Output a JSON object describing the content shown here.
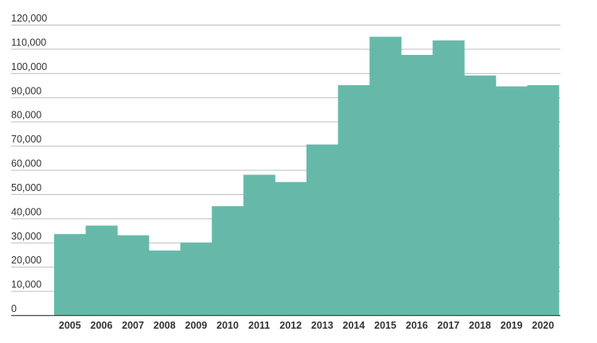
{
  "chart_data": {
    "type": "bar",
    "title": "",
    "xlabel": "",
    "ylabel": "",
    "categories": [
      "2005",
      "2006",
      "2007",
      "2008",
      "2009",
      "2010",
      "2011",
      "2012",
      "2013",
      "2014",
      "2015",
      "2016",
      "2017",
      "2018",
      "2019",
      "2020"
    ],
    "values": [
      33500,
      37000,
      33000,
      26700,
      30000,
      45000,
      58000,
      55000,
      70500,
      95000,
      115000,
      107500,
      113500,
      99000,
      94500,
      95000
    ],
    "ylim": [
      0,
      120000
    ],
    "yticks": [
      {
        "value": 0,
        "label": "0"
      },
      {
        "value": 10000,
        "label": "10,000"
      },
      {
        "value": 20000,
        "label": "20,000"
      },
      {
        "value": 30000,
        "label": "30,000"
      },
      {
        "value": 40000,
        "label": "40,000"
      },
      {
        "value": 50000,
        "label": "50,000"
      },
      {
        "value": 60000,
        "label": "60,000"
      },
      {
        "value": 70000,
        "label": "70,000"
      },
      {
        "value": 80000,
        "label": "80,000"
      },
      {
        "value": 90000,
        "label": "90,000"
      },
      {
        "value": 100000,
        "label": "100,000"
      },
      {
        "value": 110000,
        "label": "110,000"
      },
      {
        "value": 120000,
        "label": "120,000"
      }
    ],
    "grid": true,
    "legend": "none",
    "bar_color": "#66b9a9"
  }
}
